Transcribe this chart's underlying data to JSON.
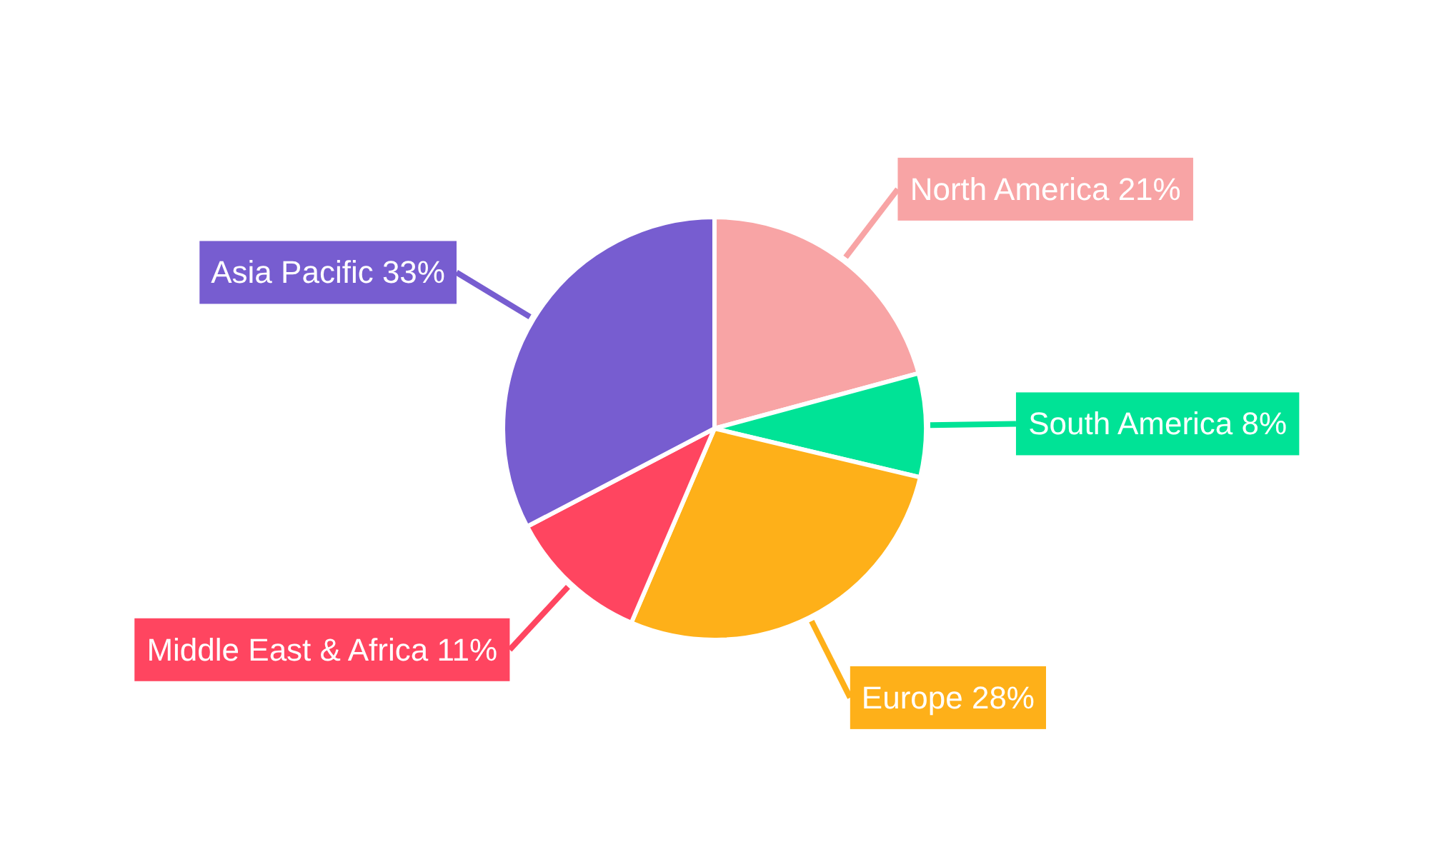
{
  "chart_data": {
    "type": "pie",
    "categories": [
      "North America",
      "South America",
      "Europe",
      "Middle East & Africa",
      "Asia Pacific"
    ],
    "values": [
      21,
      8,
      28,
      11,
      33
    ],
    "value_labels": [
      "21%",
      "8%",
      "28%",
      "11%",
      "33%"
    ],
    "colors": [
      "#f8a4a5",
      "#00e396",
      "#feb019",
      "#ff4560",
      "#775dd0"
    ],
    "legend": false
  }
}
